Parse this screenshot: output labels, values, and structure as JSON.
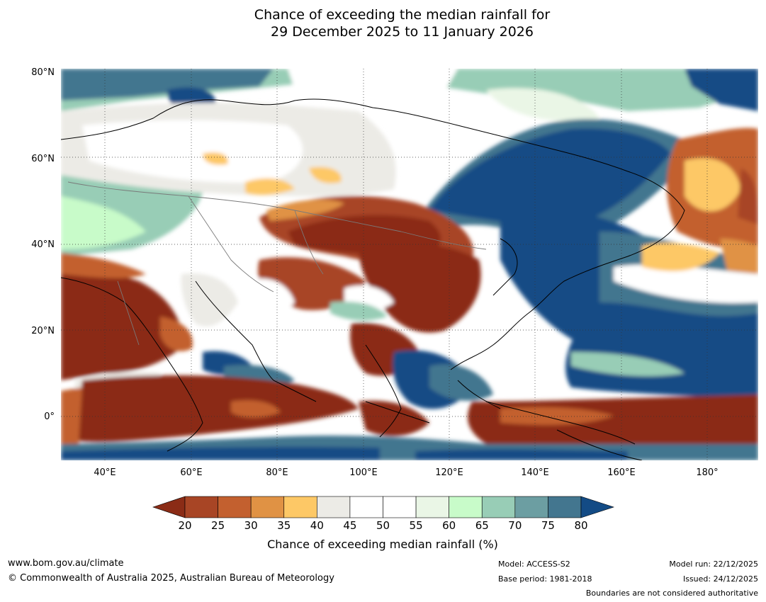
{
  "title": {
    "line1": "Chance of exceeding the median rainfall for",
    "line2": "29 December 2025 to 11 January 2026"
  },
  "map": {
    "y_ticks": [
      "80°N",
      "60°N",
      "40°N",
      "20°N",
      "0°"
    ],
    "x_ticks": [
      "40°E",
      "60°E",
      "80°E",
      "100°E",
      "120°E",
      "140°E",
      "160°E",
      "180°"
    ]
  },
  "colorbar": {
    "ticks": [
      "20",
      "25",
      "30",
      "35",
      "40",
      "45",
      "50",
      "55",
      "60",
      "65",
      "70",
      "75",
      "80"
    ],
    "colors": [
      "#8b2c16",
      "#a84525",
      "#c3602f",
      "#e09244",
      "#fdc866",
      "#ecebe6",
      "#ffffff",
      "#ffffff",
      "#eaf6e6",
      "#c8fbc9",
      "#98cdb6",
      "#6c9ea2",
      "#43768f",
      "#134b85"
    ],
    "label": "Chance of exceeding median rainfall (%)"
  },
  "footer": {
    "url": "www.bom.gov.au/climate",
    "copyright": "© Commonwealth of Australia 2025, Australian Bureau of Meteorology",
    "model": "Model: ACCESS-S2",
    "base_period": "Base period: 1981-2018",
    "model_run": "Model run: 22/12/2025",
    "issued": "Issued: 24/12/2025",
    "disclaimer": "Boundaries are not considered authoritative"
  }
}
